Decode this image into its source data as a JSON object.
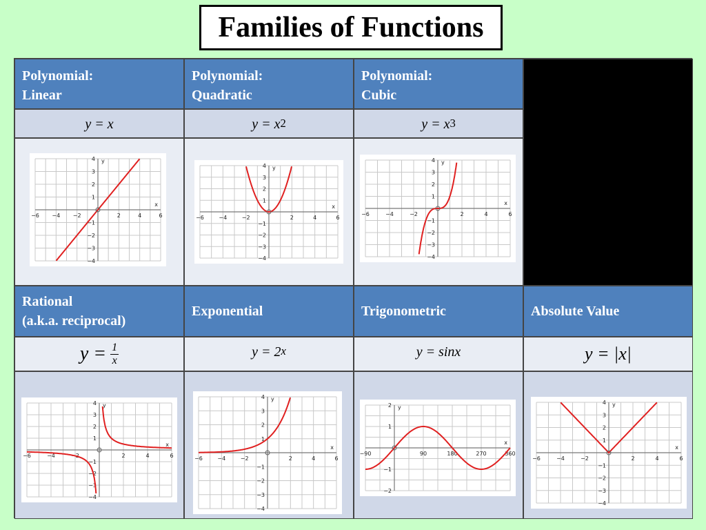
{
  "title": "Families of Functions",
  "headers_row1": [
    {
      "line1": "Polynomial:",
      "line2": "Linear"
    },
    {
      "line1": "Polynomial:",
      "line2": "Quadratic"
    },
    {
      "line1": "Polynomial:",
      "line2": "Cubic"
    }
  ],
  "equations_row1": {
    "linear": {
      "lhs": "y = x"
    },
    "quadratic": {
      "base": "y = x",
      "exp": "2"
    },
    "cubic": {
      "base": "y = x",
      "exp": "3"
    }
  },
  "headers_row2": [
    {
      "line1": "Rational",
      "line2": "(a.k.a. reciprocal)"
    },
    {
      "line1": "Exponential"
    },
    {
      "line1": "Trigonometric"
    },
    {
      "line1": "Absolute Value"
    }
  ],
  "equations_row2": {
    "rational": {
      "lhs": "y =",
      "num": "1",
      "den": "x"
    },
    "exponential": {
      "base": "y = 2",
      "exp": "x"
    },
    "trig": {
      "lhs": "y = sin",
      "var": "x"
    },
    "absolute": {
      "text": "y = |x|"
    }
  },
  "axis_labels": {
    "x": "x",
    "y": "y"
  },
  "ticks_standard": {
    "x": [
      "−6",
      "−4",
      "−2",
      "2",
      "4",
      "6"
    ],
    "y_pos": [
      "1",
      "2",
      "3",
      "4"
    ],
    "y_neg": [
      "−1",
      "−2",
      "−3",
      "−4"
    ]
  },
  "ticks_trig": {
    "x": [
      "−90",
      "90",
      "180",
      "270",
      "360"
    ],
    "y": [
      "2",
      "1",
      "−1",
      "−2"
    ]
  },
  "colors": {
    "background": "#c8ffc8",
    "header": "#4f81bd",
    "curve": "#e02020"
  }
}
